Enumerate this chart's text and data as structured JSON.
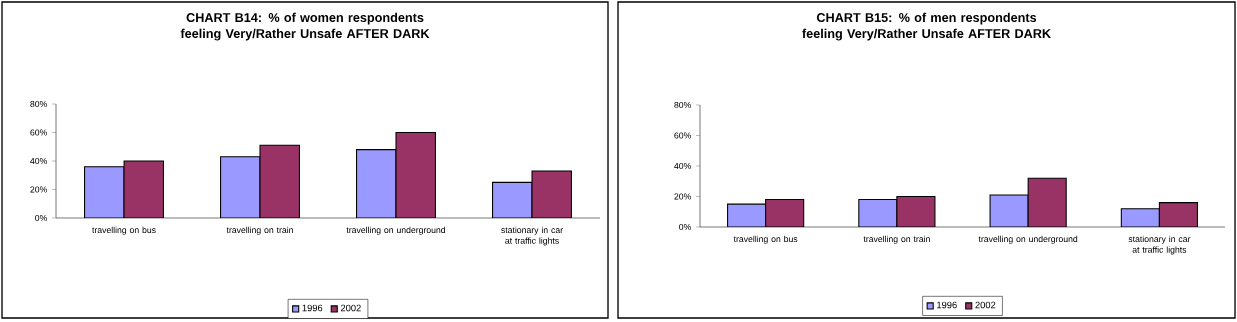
{
  "chart_data": [
    {
      "type": "bar",
      "title": "CHART B14: % of women respondents feeling Very/Rather Unsafe AFTER DARK",
      "categories": [
        "travelling on bus",
        "travelling on train",
        "travelling on underground",
        "stationary in car at traffic lights"
      ],
      "series": [
        {
          "name": "1996",
          "color": "#9999ff",
          "values": [
            36,
            43,
            48,
            25
          ]
        },
        {
          "name": "2002",
          "color": "#993366",
          "values": [
            40,
            51,
            60,
            33
          ]
        }
      ],
      "ylim": [
        0,
        80
      ],
      "yticks": [
        {
          "value": 0,
          "label": "0%"
        },
        {
          "value": 20,
          "label": "20%"
        },
        {
          "value": 40,
          "label": "40%"
        },
        {
          "value": 60,
          "label": "60%"
        },
        {
          "value": 80,
          "label": "80%"
        }
      ],
      "grid": false,
      "legend": "bottom"
    },
    {
      "type": "bar",
      "title": "CHART B15: % of men respondents feeling Very/Rather Unsafe AFTER DARK",
      "categories": [
        "travelling on bus",
        "travelling on train",
        "travelling on underground",
        "stationary in car at traffic lights"
      ],
      "series": [
        {
          "name": "1996",
          "color": "#9999ff",
          "values": [
            15,
            18,
            21,
            12
          ]
        },
        {
          "name": "2002",
          "color": "#993366",
          "values": [
            18,
            20,
            32,
            16
          ]
        }
      ],
      "ylim": [
        0,
        80
      ],
      "yticks": [
        {
          "value": 0,
          "label": "0%"
        },
        {
          "value": 20,
          "label": "20%"
        },
        {
          "value": 40,
          "label": "40%"
        },
        {
          "value": 60,
          "label": "60%"
        },
        {
          "value": 80,
          "label": "80%"
        }
      ],
      "grid": false,
      "legend": "bottom"
    }
  ]
}
